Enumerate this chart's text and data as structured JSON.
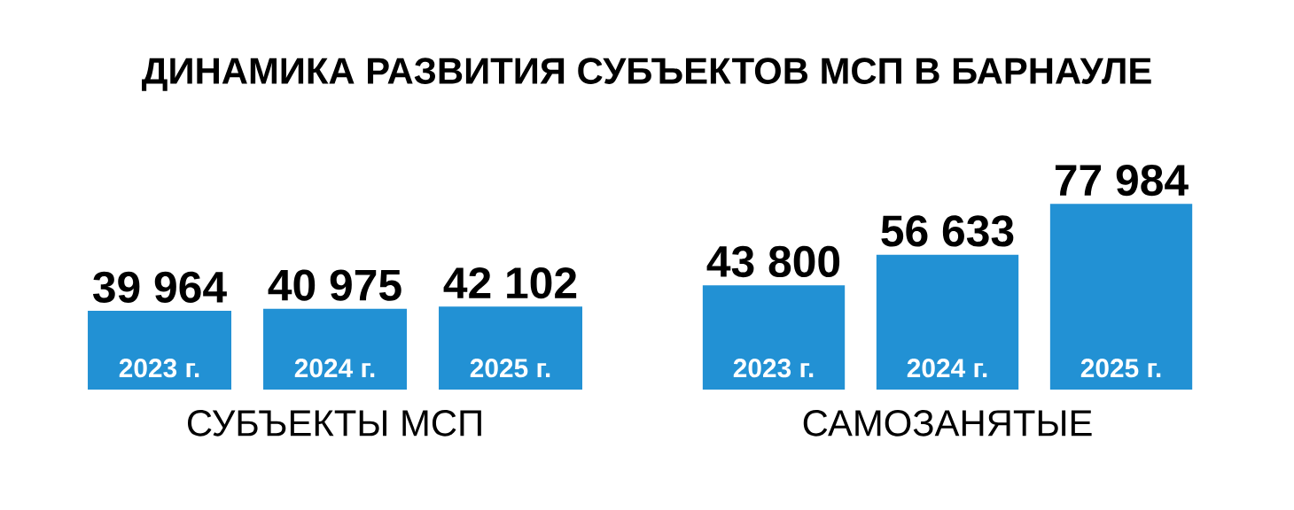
{
  "chart_data": [
    {
      "type": "bar",
      "title": "ДИНАМИКА РАЗВИТИЯ СУБЪЕКТОВ МСП В БАРНАУЛЕ",
      "xlabel": "СУБЪЕКТЫ МСП",
      "categories": [
        "2023 г.",
        "2024 г.",
        "2025 г."
      ],
      "values": [
        39964,
        40975,
        42102
      ],
      "value_labels": [
        "39 964",
        "40 975",
        "42 102"
      ],
      "color": "#2291d4"
    },
    {
      "type": "bar",
      "xlabel": "САМОЗАНЯТЫЕ",
      "categories": [
        "2023 г.",
        "2024 г.",
        "2025 г."
      ],
      "values": [
        43800,
        56633,
        77984
      ],
      "value_labels": [
        "43 800",
        "56 633",
        "77 984"
      ],
      "color": "#2291d4"
    }
  ]
}
